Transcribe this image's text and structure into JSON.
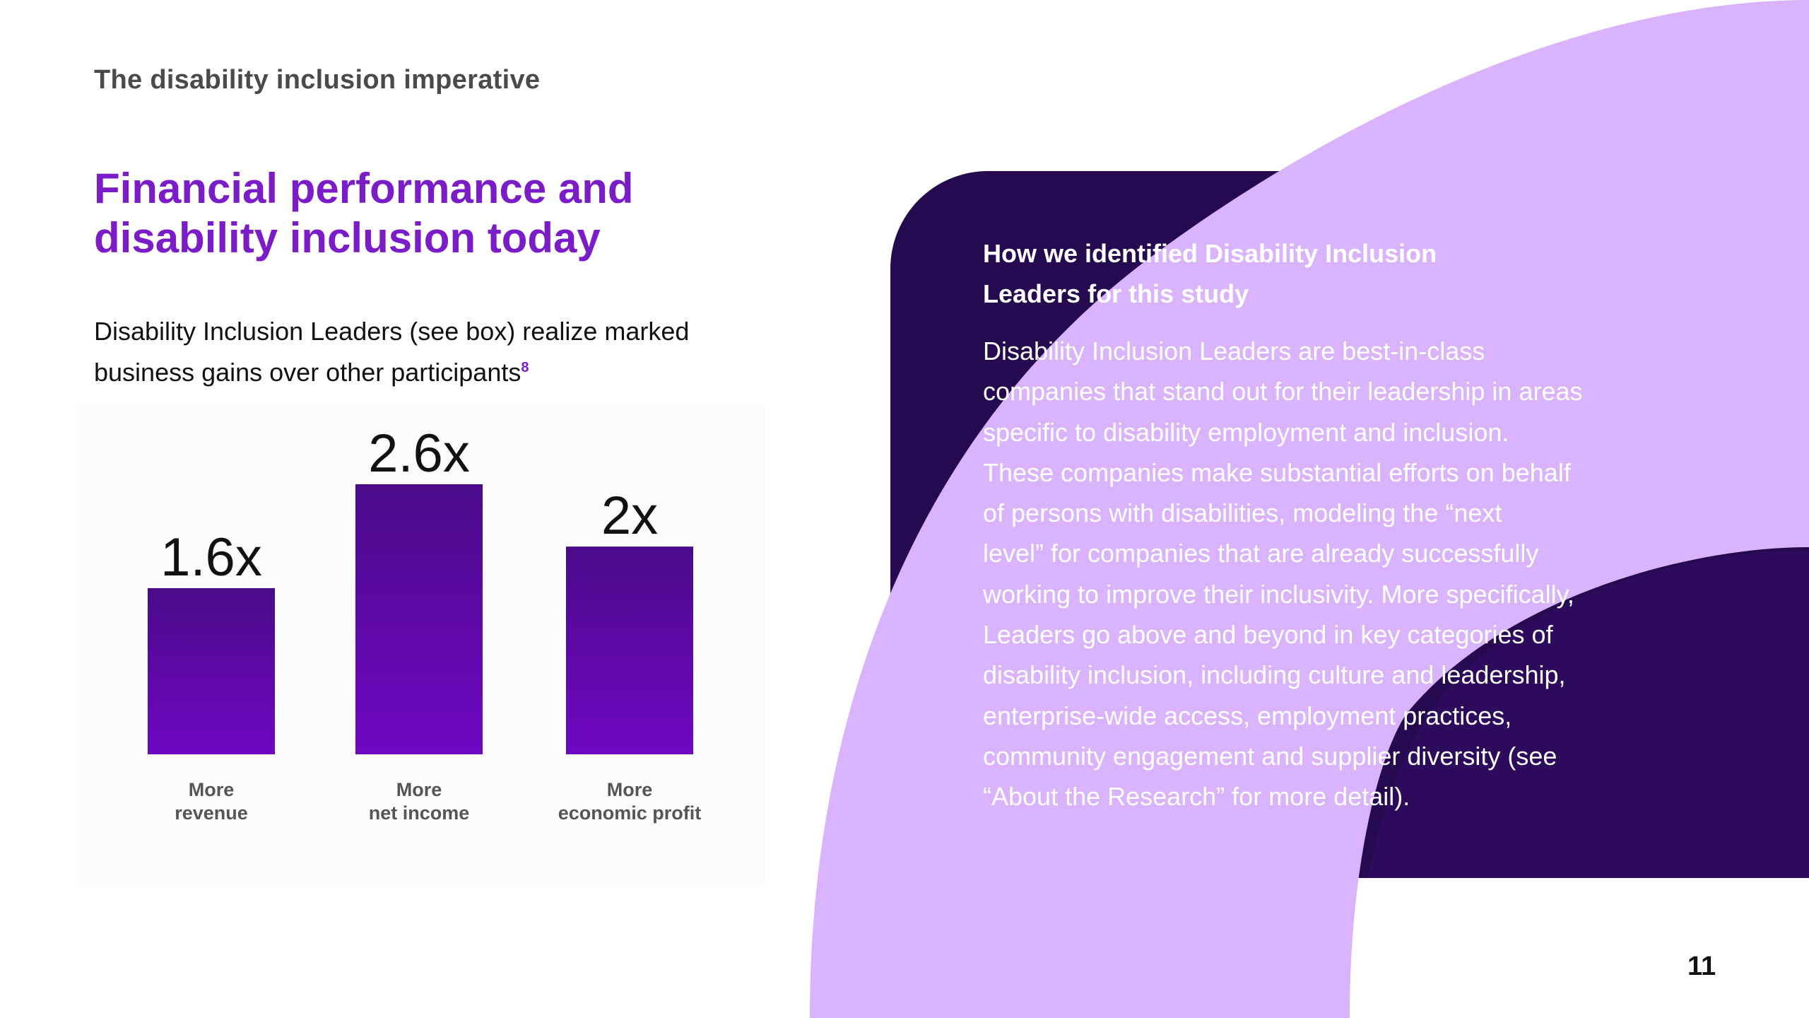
{
  "header": {
    "section_label": "The disability inclusion imperative"
  },
  "title": {
    "lines": [
      "Financial performance and",
      "disability inclusion today"
    ]
  },
  "intro": {
    "lines": [
      "Disability Inclusion Leaders (see box) realize marked",
      "business gains over other participants"
    ],
    "footnote": "8"
  },
  "chart_data": {
    "type": "bar",
    "categories": [
      "More revenue",
      "More net income",
      "More economic profit"
    ],
    "category_lines": [
      [
        "More",
        "revenue"
      ],
      [
        "More",
        "net income"
      ],
      [
        "More",
        "economic profit"
      ]
    ],
    "values": [
      1.6,
      2.6,
      2.0
    ],
    "value_labels": [
      "1.6x",
      "2.6x",
      "2x"
    ],
    "title": "",
    "xlabel": "",
    "ylabel": "",
    "ylim": [
      0,
      2.6
    ],
    "grid": false,
    "bar_color_top": "#4b0a8a",
    "bar_color_bottom": "#6f08c2"
  },
  "box": {
    "heading_lines": [
      "How we identified Disability Inclusion",
      "Leaders for this study"
    ],
    "body_lines": [
      "Disability Inclusion Leaders are best-in-class",
      "companies that stand out for their leadership in areas",
      "specific to disability employment and inclusion.",
      "These companies make substantial efforts on behalf",
      "of persons with disabilities, modeling the “next",
      "level” for companies that are already successfully",
      "working to improve their inclusivity. More specifically,",
      "Leaders go above and beyond in key categories of",
      "disability inclusion, including culture and leadership,",
      "enterprise-wide access, employment practices,",
      "community engagement and supplier diversity (see",
      "“About the Research” for more detail)."
    ]
  },
  "footer": {
    "page_number": "11"
  },
  "colors": {
    "accent_purple": "#7b1cc9",
    "box_dark": "#250a4f",
    "lavender": "#d9b3fb",
    "dark_arc": "#2e0a5c"
  }
}
